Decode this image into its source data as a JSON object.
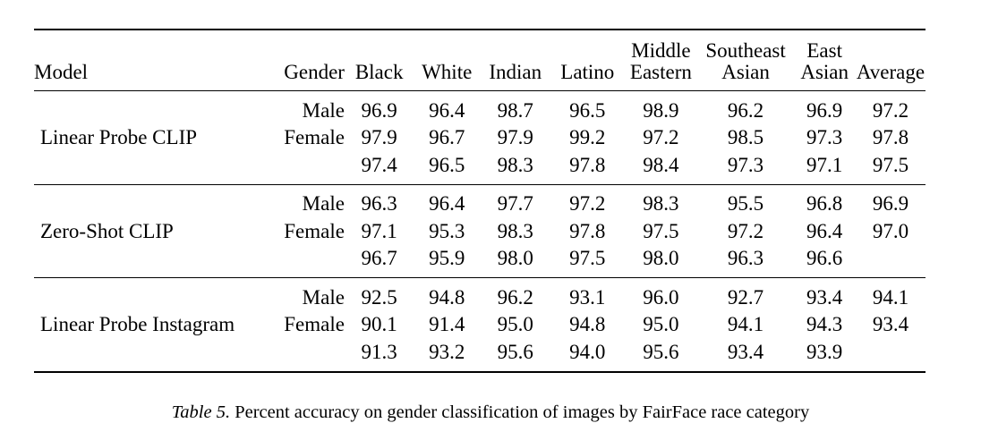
{
  "table": {
    "columns": {
      "model": "Model",
      "gender": "Gender",
      "black": "Black",
      "white": "White",
      "indian": "Indian",
      "latino": "Latino",
      "middle_eastern": [
        "Middle",
        "Eastern"
      ],
      "southeast_asian": [
        "Southeast",
        "Asian"
      ],
      "east_asian": [
        "East",
        "Asian"
      ],
      "average": "Average"
    },
    "groups": [
      {
        "model": "Linear Probe CLIP",
        "rows": [
          {
            "gender": "Male",
            "values": [
              "96.9",
              "96.4",
              "98.7",
              "96.5",
              "98.9",
              "96.2",
              "96.9",
              "97.2"
            ]
          },
          {
            "gender": "Female",
            "values": [
              "97.9",
              "96.7",
              "97.9",
              "99.2",
              "97.2",
              "98.5",
              "97.3",
              "97.8"
            ]
          },
          {
            "gender": "",
            "values": [
              "97.4",
              "96.5",
              "98.3",
              "97.8",
              "98.4",
              "97.3",
              "97.1",
              "97.5"
            ]
          }
        ]
      },
      {
        "model": "Zero-Shot CLIP",
        "rows": [
          {
            "gender": "Male",
            "values": [
              "96.3",
              "96.4",
              "97.7",
              "97.2",
              "98.3",
              "95.5",
              "96.8",
              "96.9"
            ]
          },
          {
            "gender": "Female",
            "values": [
              "97.1",
              "95.3",
              "98.3",
              "97.8",
              "97.5",
              "97.2",
              "96.4",
              "97.0"
            ]
          },
          {
            "gender": "",
            "values": [
              "96.7",
              "95.9",
              "98.0",
              "97.5",
              "98.0",
              "96.3",
              "96.6",
              ""
            ]
          }
        ]
      },
      {
        "model": "Linear Probe Instagram",
        "rows": [
          {
            "gender": "Male",
            "values": [
              "92.5",
              "94.8",
              "96.2",
              "93.1",
              "96.0",
              "92.7",
              "93.4",
              "94.1"
            ]
          },
          {
            "gender": "Female",
            "values": [
              "90.1",
              "91.4",
              "95.0",
              "94.8",
              "95.0",
              "94.1",
              "94.3",
              "93.4"
            ]
          },
          {
            "gender": "",
            "values": [
              "91.3",
              "93.2",
              "95.6",
              "94.0",
              "95.6",
              "93.4",
              "93.9",
              ""
            ]
          }
        ]
      }
    ]
  },
  "caption": {
    "label": "Table 5.",
    "text": "Percent accuracy on gender classification of images by FairFace race category"
  }
}
